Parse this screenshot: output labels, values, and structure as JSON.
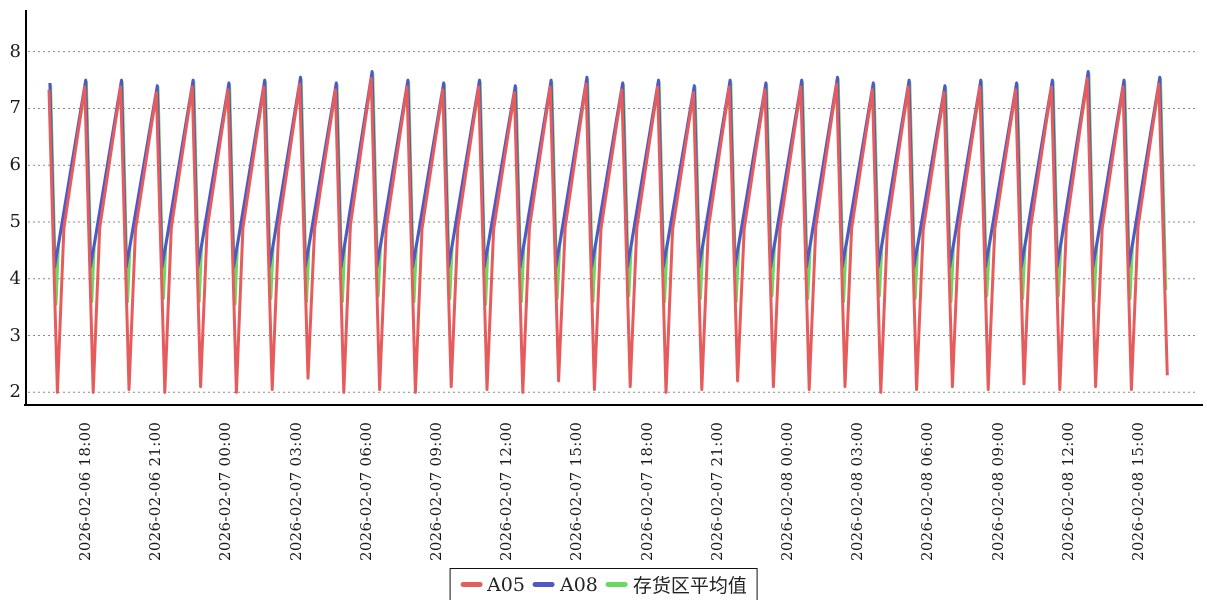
{
  "page": {
    "background": "#ffffff",
    "title": ""
  },
  "chart_data": {
    "type": "line",
    "title": "",
    "xlabel": "",
    "ylabel": "",
    "grid": "horizontal-dashed",
    "legend_position": "bottom-center",
    "x_axis": {
      "tick_labels": [
        "2026-02-06 18:00",
        "2026-02-06 21:00",
        "2026-02-07 00:00",
        "2026-02-07 03:00",
        "2026-02-07 06:00",
        "2026-02-07 09:00",
        "2026-02-07 12:00",
        "2026-02-07 15:00",
        "2026-02-07 18:00",
        "2026-02-07 21:00",
        "2026-02-08 00:00",
        "2026-02-08 03:00",
        "2026-02-08 06:00",
        "2026-02-08 09:00",
        "2026-02-08 12:00",
        "2026-02-08 15:00"
      ],
      "tick_times_h": [
        0,
        3,
        6,
        9,
        12,
        15,
        18,
        21,
        24,
        27,
        30,
        33,
        36,
        39,
        42,
        45
      ],
      "label_rotation_deg": -90
    },
    "y_axis": {
      "min": 2,
      "max": 8,
      "ticks": [
        2,
        3,
        4,
        5,
        6,
        7,
        8
      ]
    },
    "series": [
      {
        "key": "a05",
        "name": "A05",
        "color": "#e65c5c"
      },
      {
        "key": "a08",
        "name": "A08",
        "color": "#4f58c6"
      },
      {
        "key": "avg",
        "name": "存货区平均值",
        "color": "#68da5f"
      }
    ],
    "draw_order": [
      "avg",
      "a08",
      "a05"
    ],
    "colors": {
      "axis": "#000000",
      "grid": "#8a8a8a",
      "tick_text": "#1a1a1a"
    },
    "waveform": {
      "description": "Repeating sawtooth defrost cycles. Times are hours relative to 2026-02-06 18:00. Each cycle: sharp drop from peak, then near-linear rise to the next peak. A08 bottoms at 4.2, the zone average dips to ~3.6, A05 dips to ~2.0; during the rise A05 tracks ~0.2 below A08 and the average is hidden just under A08.",
      "period_h": 1.53,
      "first_peak_h": -1.5,
      "cycle_count": 32,
      "a08": {
        "peak_values": [
          7.45,
          7.5,
          7.5,
          7.4,
          7.5,
          7.45,
          7.5,
          7.55,
          7.45,
          7.65,
          7.5,
          7.45,
          7.5,
          7.4,
          7.5,
          7.55,
          7.45,
          7.5,
          7.4,
          7.5,
          7.45,
          7.5,
          7.55,
          7.45,
          7.5,
          7.4,
          7.5,
          7.45,
          7.5,
          7.65,
          7.5,
          7.55
        ],
        "valley_value": 4.2,
        "drop_duration_h": 0.2
      },
      "a05": {
        "peak_offset_vs_a08": -0.12,
        "peak_lead_h": 0.04,
        "valley_phase_h": 0.32,
        "rejoin_phase_h": 0.6,
        "rejoin_gap": 0.3,
        "valley_values": [
          2.0,
          2.0,
          2.05,
          2.0,
          2.1,
          2.0,
          2.05,
          2.25,
          2.0,
          2.05,
          2.0,
          2.1,
          2.05,
          2.0,
          2.2,
          2.05,
          2.1,
          2.0,
          2.05,
          2.2,
          2.1,
          2.05,
          2.1,
          2.0,
          2.05,
          2.1,
          2.05,
          2.15,
          2.05,
          2.1,
          2.05,
          2.3
        ]
      },
      "avg": {
        "peak_offset_vs_a08": -0.03,
        "peak_lag_h": 0.03,
        "valley_phase_h": 0.26,
        "rejoin_phase_h": 0.36,
        "rejoin_gap": 0.03,
        "valley_values": [
          3.55,
          3.6,
          3.6,
          3.65,
          3.6,
          3.55,
          3.65,
          3.6,
          3.6,
          3.7,
          3.6,
          3.65,
          3.55,
          3.6,
          3.65,
          3.6,
          3.7,
          3.6,
          3.65,
          3.6,
          3.7,
          3.65,
          3.6,
          3.7,
          3.65,
          3.6,
          3.7,
          3.65,
          3.7,
          3.6,
          3.65,
          3.8
        ]
      }
    }
  },
  "legend": {
    "items": [
      {
        "label": "A05"
      },
      {
        "label": "A08"
      },
      {
        "label": "存货区平均值"
      }
    ]
  }
}
